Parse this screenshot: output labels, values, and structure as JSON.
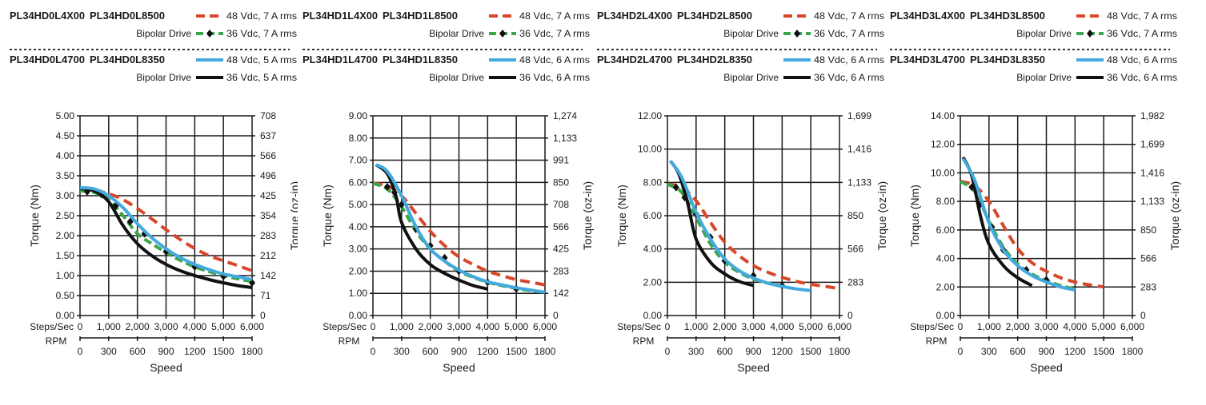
{
  "chart_data": [
    {
      "type": "line",
      "legend": {
        "model_a1": "PL34HD0L4X00",
        "model_a2": "PL34HD0L8500",
        "drive_a": "Bipolar Drive",
        "model_b1": "PL34HD0L4700",
        "model_b2": "PL34HD0L8350",
        "drive_b": "Bipolar Drive"
      },
      "ylabel": "Torque (Nm)",
      "y2label": "Torque (oz-in)",
      "xlabel": "Speed",
      "x_axis_name": "Steps/Sec",
      "x2_axis_name": "RPM",
      "ylim": [
        0,
        5
      ],
      "yticks": [
        "0.00",
        "0.50",
        "1.00",
        "1.50",
        "2.00",
        "2.50",
        "3.00",
        "3.50",
        "4.00",
        "4.50",
        "5.00"
      ],
      "y2ticks": [
        "0",
        "71",
        "142",
        "212",
        "283",
        "354",
        "425",
        "496",
        "566",
        "637",
        "708"
      ],
      "xlim": [
        0,
        6000
      ],
      "xticks": [
        "0",
        "1,000",
        "2,000",
        "3,000",
        "4,000",
        "5,000",
        "6,000"
      ],
      "x2ticks": [
        "0",
        "300",
        "600",
        "900",
        "1200",
        "1500",
        "1800"
      ],
      "series": [
        {
          "name": "48 Vdc, 7 A rms",
          "color": "#d9472b",
          "style": "dashed",
          "x": [
            0,
            500,
            1000,
            1500,
            2000,
            2500,
            3000,
            3500,
            4000,
            4500,
            5000,
            5500,
            6000
          ],
          "y": [
            3.15,
            3.13,
            3.05,
            2.9,
            2.68,
            2.42,
            2.15,
            1.9,
            1.68,
            1.5,
            1.37,
            1.25,
            1.12
          ]
        },
        {
          "name": "36 Vdc, 7 A rms",
          "color": "#3aa54a",
          "style": "dashed-marker",
          "x": [
            0,
            500,
            1000,
            1500,
            2000,
            2500,
            3000,
            3500,
            4000,
            4500,
            5000,
            5500,
            6000
          ],
          "y": [
            3.12,
            3.08,
            2.9,
            2.5,
            2.05,
            1.8,
            1.58,
            1.38,
            1.22,
            1.1,
            1.0,
            0.92,
            0.85
          ],
          "markers_x": [
            250,
            750,
            1250,
            1750,
            2250,
            3000,
            4000,
            5000,
            6000
          ],
          "markers_y": [
            3.1,
            3.03,
            2.75,
            2.35,
            2.05,
            1.6,
            1.22,
            0.98,
            0.82
          ]
        },
        {
          "name": "48 Vdc, 5 A rms",
          "color": "#44a9de",
          "style": "solid",
          "x": [
            0,
            500,
            1000,
            1500,
            2000,
            2500,
            3000,
            3500,
            4000,
            4500,
            5000,
            5500,
            6000
          ],
          "y": [
            3.2,
            3.17,
            3.0,
            2.7,
            2.3,
            1.95,
            1.67,
            1.45,
            1.28,
            1.15,
            1.04,
            0.97,
            0.9
          ]
        },
        {
          "name": "36 Vdc, 5 A rms",
          "color": "#111111",
          "style": "solid",
          "x": [
            0,
            500,
            1000,
            1500,
            2000,
            2500,
            3000,
            3500,
            4000,
            4500,
            5000,
            5500,
            6000
          ],
          "y": [
            3.18,
            3.12,
            2.85,
            2.25,
            1.8,
            1.5,
            1.28,
            1.12,
            1.0,
            0.9,
            0.82,
            0.75,
            0.7
          ]
        }
      ]
    },
    {
      "type": "line",
      "legend": {
        "model_a1": "PL34HD1L4X00",
        "model_a2": "PL34HD1L8500",
        "drive_a": "Bipolar Drive",
        "model_b1": "PL34HD1L4700",
        "model_b2": "PL34HD1L8350",
        "drive_b": "Bipolar Drive"
      },
      "ylabel": "Torque (Nm)",
      "y2label": "Torque (oz-in)",
      "xlabel": "Speed",
      "x_axis_name": "Steps/Sec",
      "x2_axis_name": "RPM",
      "ylim": [
        0,
        9
      ],
      "yticks": [
        "0.00",
        "1.00",
        "2.00",
        "3.00",
        "4.00",
        "5.00",
        "6.00",
        "7.00",
        "8.00",
        "9.00"
      ],
      "y2ticks": [
        "0",
        "142",
        "283",
        "425",
        "566",
        "708",
        "850",
        "991",
        "1,133",
        "1,274"
      ],
      "xlim": [
        0,
        6000
      ],
      "xticks": [
        "0",
        "1,000",
        "2,000",
        "3,000",
        "4,000",
        "5,000",
        "6,000"
      ],
      "x2ticks": [
        "0",
        "300",
        "600",
        "900",
        "1200",
        "1500",
        "1800"
      ],
      "series": [
        {
          "name": "48 Vdc, 7 A rms",
          "color": "#d9472b",
          "style": "dashed",
          "x": [
            0,
            500,
            1000,
            1500,
            2000,
            2500,
            3000,
            3500,
            4000,
            4500,
            5000,
            5500,
            6000
          ],
          "y": [
            5.95,
            5.85,
            5.4,
            4.6,
            3.8,
            3.15,
            2.65,
            2.3,
            2.0,
            1.8,
            1.62,
            1.5,
            1.38
          ]
        },
        {
          "name": "36 Vdc, 7 A rms",
          "color": "#3aa54a",
          "style": "dashed-marker",
          "x": [
            0,
            500,
            1000,
            1500,
            2000,
            2500,
            3000,
            3500,
            4000,
            4500,
            5000,
            5500,
            6000
          ],
          "y": [
            5.95,
            5.7,
            4.9,
            3.8,
            3.0,
            2.45,
            2.0,
            1.72,
            1.5,
            1.35,
            1.22,
            1.12,
            1.05
          ],
          "markers_x": [
            500,
            750,
            1000,
            1500,
            2000,
            2500,
            3000,
            4000,
            5000
          ],
          "markers_y": [
            5.8,
            5.55,
            5.0,
            3.9,
            3.15,
            2.6,
            2.0,
            1.5,
            1.2
          ]
        },
        {
          "name": "48 Vdc, 6 A rms",
          "color": "#44a9de",
          "style": "solid",
          "x": [
            100,
            500,
            1000,
            1500,
            2000,
            2500,
            3000,
            3500,
            4000,
            4500,
            5000,
            5500,
            6000
          ],
          "y": [
            6.8,
            6.5,
            5.4,
            4.0,
            3.0,
            2.45,
            2.05,
            1.75,
            1.52,
            1.38,
            1.25,
            1.15,
            1.05
          ]
        },
        {
          "name": "36 Vdc, 6 A rms",
          "color": "#111111",
          "style": "solid",
          "x": [
            100,
            500,
            800,
            1000,
            1500,
            2000,
            2500,
            3000,
            3500,
            4000
          ],
          "y": [
            6.8,
            6.4,
            5.4,
            4.2,
            3.0,
            2.3,
            1.9,
            1.6,
            1.35,
            1.2
          ]
        }
      ]
    },
    {
      "type": "line",
      "legend": {
        "model_a1": "PL34HD2L4X00",
        "model_a2": "PL34HD2L8500",
        "drive_a": "Bipolar Drive",
        "model_b1": "PL34HD2L4700",
        "model_b2": "PL34HD2L8350",
        "drive_b": "Bipolar Drive"
      },
      "ylabel": "Torque (Nm)",
      "y2label": "Torque (oz-in)",
      "xlabel": "Speed",
      "x_axis_name": "Steps/Sec",
      "x2_axis_name": "RPM",
      "ylim": [
        0,
        12
      ],
      "yticks": [
        "0.00",
        "2.00",
        "4.00",
        "6.00",
        "8.00",
        "10.00",
        "12.00"
      ],
      "y2ticks": [
        "0",
        "283",
        "566",
        "850",
        "1,133",
        "1,416",
        "1,699"
      ],
      "xlim": [
        0,
        6000
      ],
      "xticks": [
        "0",
        "1,000",
        "2,000",
        "3,000",
        "4,000",
        "5,000",
        "6,000"
      ],
      "x2ticks": [
        "0",
        "300",
        "600",
        "900",
        "1200",
        "1500",
        "1800"
      ],
      "series": [
        {
          "name": "48 Vdc, 7 A rms",
          "color": "#d9472b",
          "style": "dashed",
          "x": [
            0,
            500,
            1000,
            1500,
            2000,
            2500,
            3000,
            3500,
            4000,
            4500,
            5000,
            5500,
            6000
          ],
          "y": [
            7.9,
            7.7,
            6.9,
            5.6,
            4.4,
            3.6,
            3.0,
            2.6,
            2.3,
            2.05,
            1.88,
            1.75,
            1.62
          ]
        },
        {
          "name": "36 Vdc, 7 A rms",
          "color": "#3aa54a",
          "style": "dashed-marker",
          "x": [
            0,
            500,
            1000,
            1500,
            2000,
            2500,
            3000,
            3500,
            4000
          ],
          "y": [
            7.9,
            7.4,
            5.9,
            4.3,
            3.2,
            2.6,
            2.2,
            1.95,
            1.8
          ],
          "markers_x": [
            300,
            600,
            1000,
            1500,
            2000,
            3000,
            4000
          ],
          "markers_y": [
            7.7,
            7.1,
            6.1,
            4.7,
            3.3,
            2.4,
            1.8
          ]
        },
        {
          "name": "48 Vdc, 6 A rms",
          "color": "#44a9de",
          "style": "solid",
          "x": [
            100,
            500,
            1000,
            1500,
            2000,
            2500,
            3000,
            3500,
            4000,
            4500,
            5000
          ],
          "y": [
            9.3,
            8.3,
            6.2,
            4.6,
            3.4,
            2.7,
            2.25,
            1.95,
            1.75,
            1.6,
            1.5
          ]
        },
        {
          "name": "36 Vdc, 6 A rms",
          "color": "#111111",
          "style": "solid",
          "x": [
            100,
            400,
            700,
            1000,
            1500,
            2000,
            2500,
            3000
          ],
          "y": [
            9.3,
            8.5,
            6.8,
            4.6,
            3.2,
            2.5,
            2.05,
            1.8
          ]
        }
      ]
    },
    {
      "type": "line",
      "legend": {
        "model_a1": "PL34HD3L4X00",
        "model_a2": "PL34HD3L8500",
        "drive_a": "Bipolar Drive",
        "model_b1": "PL34HD3L4700",
        "model_b2": "PL34HD3L8350",
        "drive_b": "Bipolar Drive"
      },
      "ylabel": "Torque (Nm)",
      "y2label": "Torque (oz-in)",
      "xlabel": "Speed",
      "x_axis_name": "Steps/Sec",
      "x2_axis_name": "RPM",
      "ylim": [
        0,
        14
      ],
      "yticks": [
        "0.00",
        "2.00",
        "4.00",
        "6.00",
        "8.00",
        "10.00",
        "12.00",
        "14.00"
      ],
      "y2ticks": [
        "0",
        "283",
        "566",
        "850",
        "1,133",
        "1,416",
        "1,699",
        "1,982"
      ],
      "xlim": [
        0,
        6000
      ],
      "xticks": [
        "0",
        "1,000",
        "2,000",
        "3,000",
        "4,000",
        "5,000",
        "6,000"
      ],
      "x2ticks": [
        "0",
        "300",
        "600",
        "900",
        "1200",
        "1500",
        "1800"
      ],
      "series": [
        {
          "name": "48 Vdc, 7 A rms",
          "color": "#d9472b",
          "style": "dashed",
          "x": [
            0,
            500,
            1000,
            1500,
            2000,
            2500,
            3000,
            3500,
            4000,
            4500,
            5000
          ],
          "y": [
            9.4,
            9.1,
            8.0,
            6.3,
            4.7,
            3.7,
            3.1,
            2.65,
            2.35,
            2.15,
            2.0
          ]
        },
        {
          "name": "36 Vdc, 7 A rms",
          "color": "#3aa54a",
          "style": "dashed-marker",
          "x": [
            0,
            500,
            1000,
            1500,
            2000,
            2500,
            3000,
            3500,
            4000
          ],
          "y": [
            9.4,
            8.7,
            6.6,
            4.8,
            3.6,
            2.9,
            2.45,
            2.1,
            1.85
          ],
          "markers_x": [
            400,
            700,
            1100,
            1500,
            2300,
            3000
          ],
          "markers_y": [
            9.0,
            7.8,
            6.2,
            4.6,
            3.2,
            2.5
          ]
        },
        {
          "name": "48 Vdc, 6 A rms",
          "color": "#44a9de",
          "style": "solid",
          "x": [
            100,
            500,
            1000,
            1500,
            2000,
            2500,
            3000,
            3500,
            4000
          ],
          "y": [
            11.0,
            9.5,
            6.5,
            4.6,
            3.5,
            2.8,
            2.35,
            2.0,
            1.8
          ]
        },
        {
          "name": "36 Vdc, 6 A rms",
          "color": "#111111",
          "style": "solid",
          "x": [
            100,
            400,
            700,
            1000,
            1500,
            2000,
            2500
          ],
          "y": [
            11.1,
            9.8,
            7.0,
            5.0,
            3.5,
            2.65,
            2.1
          ]
        }
      ]
    }
  ]
}
